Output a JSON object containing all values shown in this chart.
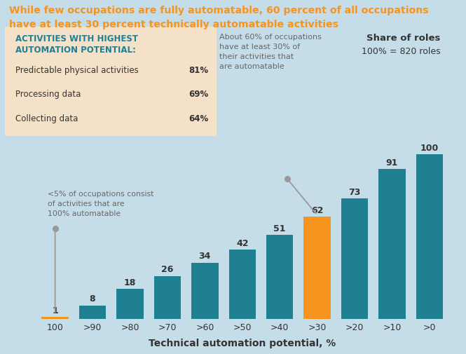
{
  "title_line1": "While few occupations are fully automatable, 60 percent of all occupations",
  "title_line2": "have at least 30 percent technically automatable activities",
  "categories": [
    "100",
    ">90",
    ">80",
    ">70",
    ">60",
    ">50",
    ">40",
    ">30",
    ">20",
    ">10",
    ">0"
  ],
  "values": [
    1,
    8,
    18,
    26,
    34,
    42,
    51,
    62,
    73,
    91,
    100
  ],
  "bar_colors": [
    "#F7941D",
    "#1E8090",
    "#1E8090",
    "#1E8090",
    "#1E8090",
    "#1E8090",
    "#1E8090",
    "#F7941D",
    "#1E8090",
    "#1E8090",
    "#1E8090"
  ],
  "xlabel": "Technical automation potential, %",
  "bg_color": "#C5DDE8",
  "title_color": "#F7941D",
  "box_bg": "#F5E0C8",
  "share_label_line1": "Share of roles",
  "share_label_line2": "100% = 820 roles",
  "box_title": "ACTIVITIES WITH HIGHEST\nAUTOMATION POTENTIAL:",
  "box_items": [
    {
      "label": "Predictable physical activities",
      "value": "81%"
    },
    {
      "label": "Processing data",
      "value": "69%"
    },
    {
      "label": "Collecting data",
      "value": "64%"
    }
  ],
  "annotation_left_text": "<5% of occupations consist\nof activities that are\n100% automatable",
  "annotation_right_text": "About 60% of occupations\nhave at least 30% of\ntheir activities that\nare automatable",
  "teal_color": "#1E8090",
  "orange_color": "#F7941D",
  "gray_color": "#999999",
  "dark_color": "#333333"
}
